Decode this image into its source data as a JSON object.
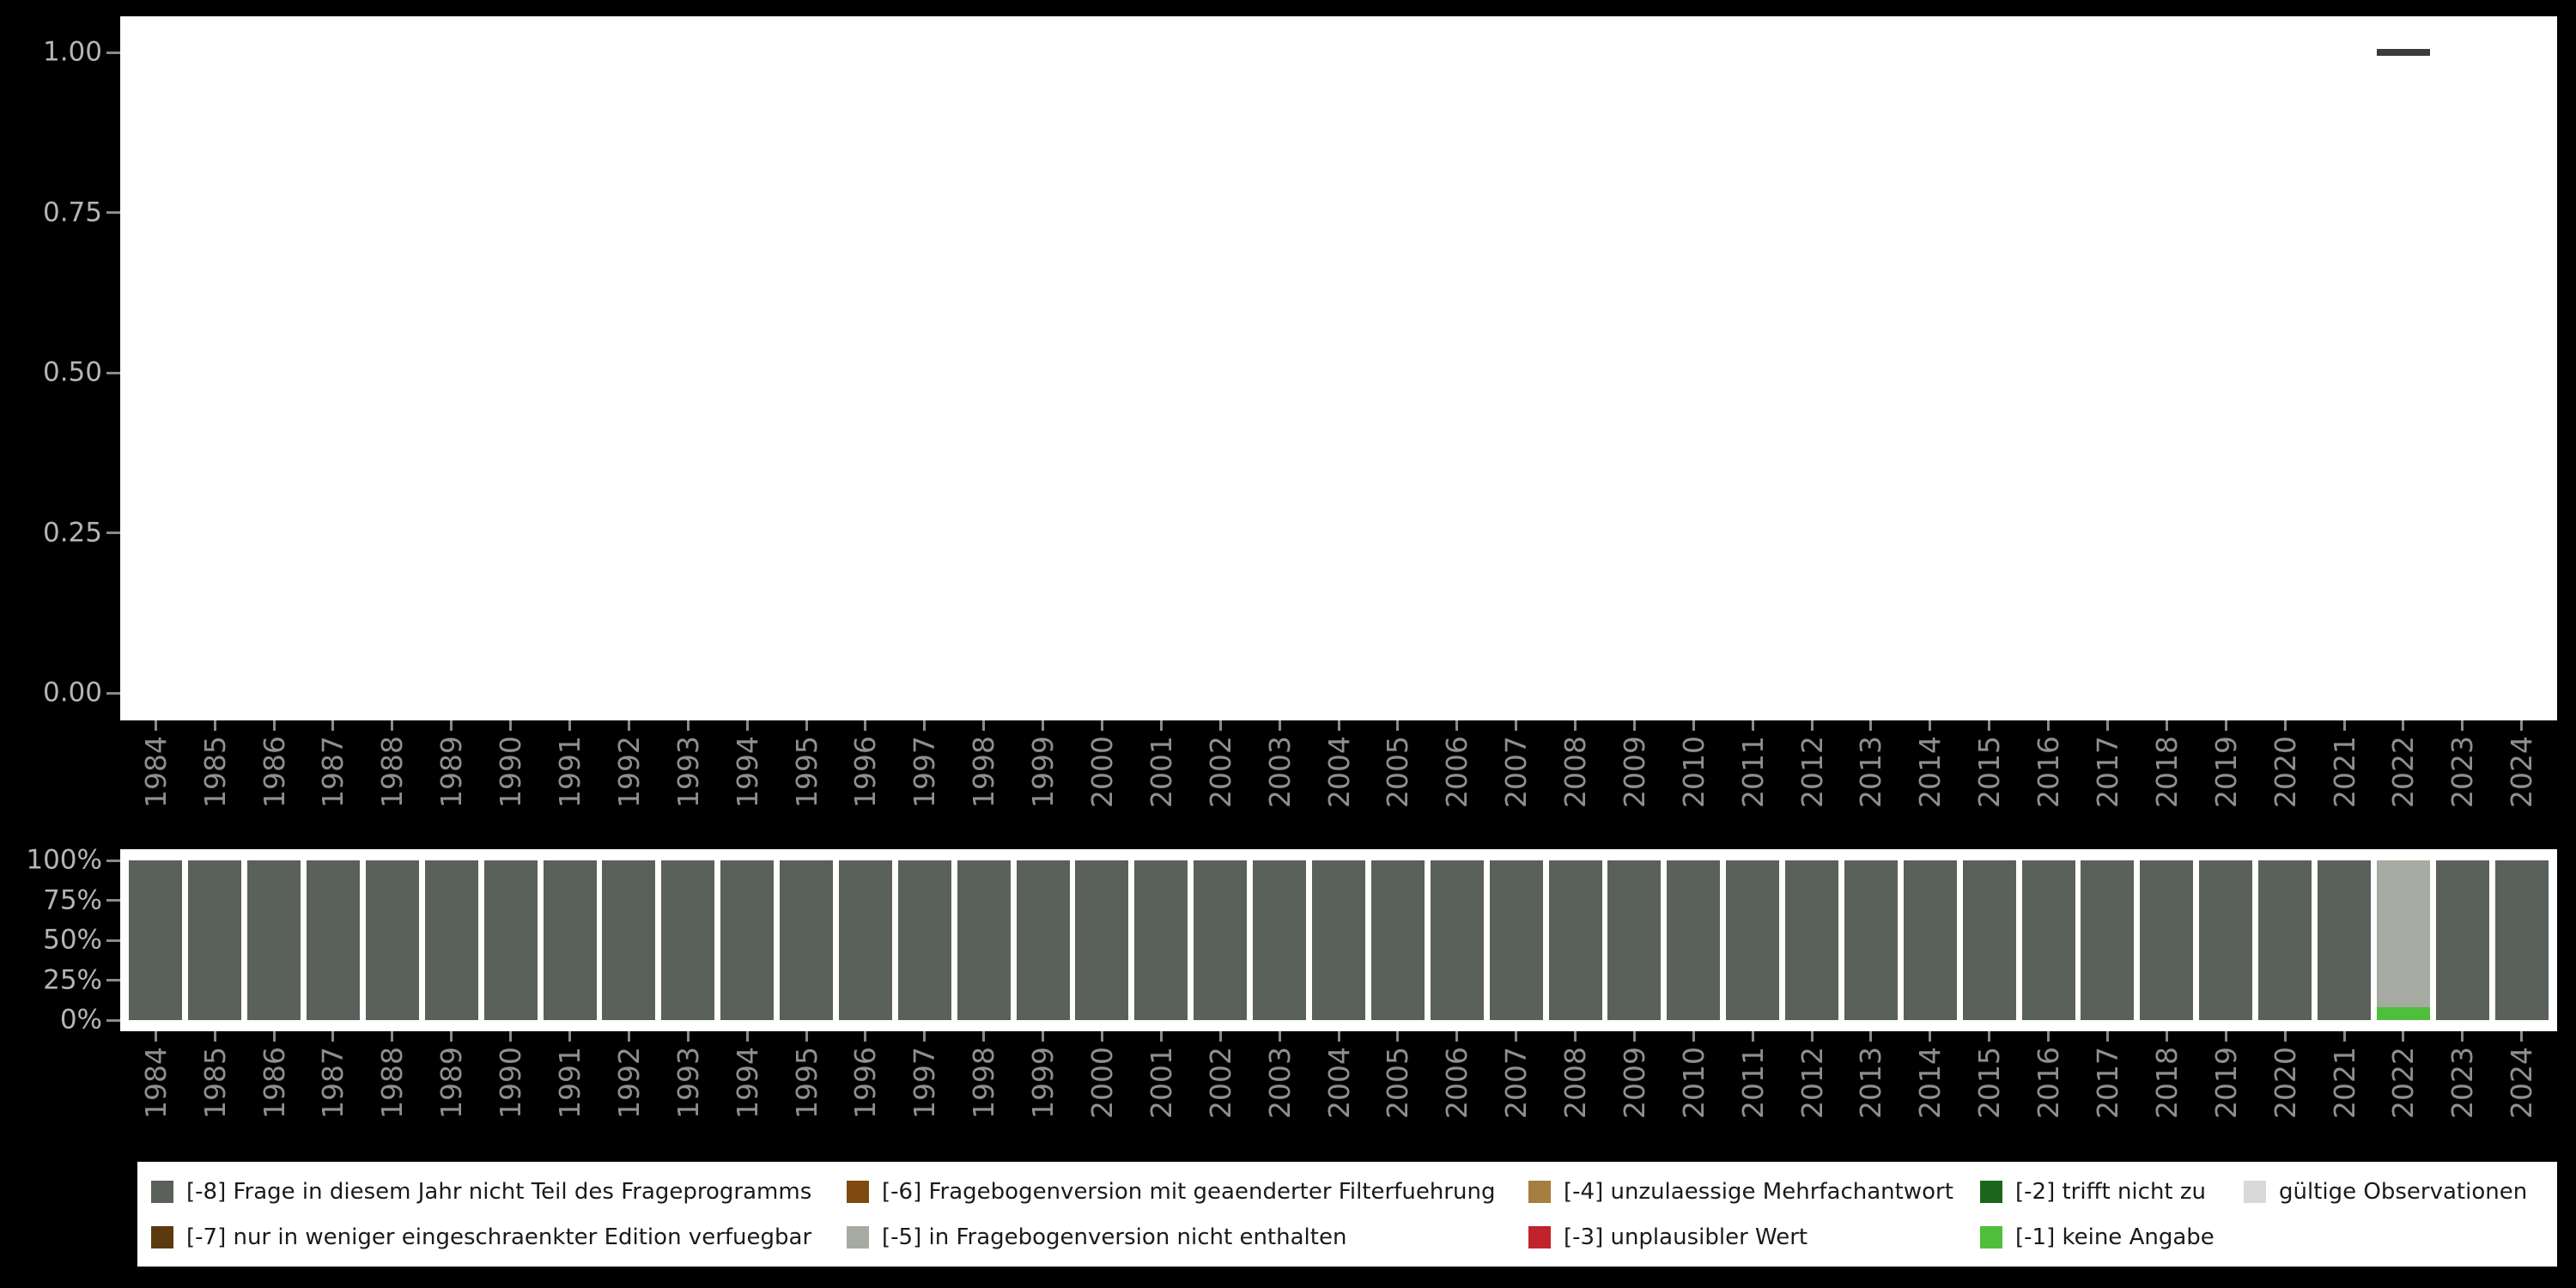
{
  "colors": {
    "page_background": "#000000",
    "panel_background": "#ffffff",
    "y_axis_text": "#b5b5b5",
    "x_axis_text": "#8f8f8f",
    "tick_mark": "#8a8a8a",
    "legend_text": "#1a1a1a"
  },
  "years": [
    "1984",
    "1985",
    "1986",
    "1987",
    "1988",
    "1989",
    "1990",
    "1991",
    "1992",
    "1993",
    "1994",
    "1995",
    "1996",
    "1997",
    "1998",
    "1999",
    "2000",
    "2001",
    "2002",
    "2003",
    "2004",
    "2005",
    "2006",
    "2007",
    "2008",
    "2009",
    "2010",
    "2011",
    "2012",
    "2013",
    "2014",
    "2015",
    "2016",
    "2017",
    "2018",
    "2019",
    "2020",
    "2021",
    "2022",
    "2023",
    "2024"
  ],
  "codes": {
    "-8": {
      "label": "[-8] Frage in diesem Jahr nicht Teil des Frageprogramms",
      "color": "#59615a"
    },
    "-7": {
      "label": "[-7] nur in weniger eingeschraenkter Edition verfuegbar",
      "color": "#5c3a0f"
    },
    "-6": {
      "label": "[-6] Fragebogenversion mit geaenderter Filterfuehrung",
      "color": "#7e4a10"
    },
    "-5": {
      "label": "[-5] in Fragebogenversion nicht enthalten",
      "color": "#a5aba0"
    },
    "-4": {
      "label": "[-4] unzulaessige Mehrfachantwort",
      "color": "#a57e40"
    },
    "-3": {
      "label": "[-3] unplausibler Wert",
      "color": "#c1232b"
    },
    "-2": {
      "label": "[-2] trifft nicht zu",
      "color": "#1c661c"
    },
    "-1": {
      "label": "[-1] keine Angabe",
      "color": "#4fbe3a"
    },
    "valid": {
      "label": "gültige Observationen",
      "color": "#d9d9d9"
    }
  },
  "legend": {
    "columns": [
      [
        "-8",
        "-7"
      ],
      [
        "-6",
        "-5"
      ],
      [
        "-4",
        "-3"
      ],
      [
        "-2",
        "-1"
      ],
      [
        "valid"
      ]
    ]
  },
  "chart_data": [
    {
      "type": "scatter",
      "panel": "top",
      "title": "",
      "xlabel": "",
      "ylabel": "",
      "ylim": [
        0,
        1
      ],
      "grid": false,
      "yticks": [
        {
          "label": "1.00",
          "value": 1.0
        },
        {
          "label": "0.75",
          "value": 0.75
        },
        {
          "label": "0.50",
          "value": 0.5
        },
        {
          "label": "0.25",
          "value": 0.25
        },
        {
          "label": "0.00",
          "value": 0.0
        }
      ],
      "x_categories": "years",
      "marker": "horizontal-dash",
      "marker_color": "#3b3b3b",
      "points": [
        {
          "x": "2022",
          "y": 1.0
        }
      ]
    },
    {
      "type": "bar",
      "panel": "bottom",
      "stacked": true,
      "stack_order": "bottom-to-top",
      "unit": "percent",
      "ylim": [
        0,
        100
      ],
      "grid": false,
      "yticks": [
        {
          "label": "100%",
          "value": 100
        },
        {
          "label": "75%",
          "value": 75
        },
        {
          "label": "50%",
          "value": 50
        },
        {
          "label": "25%",
          "value": 25
        },
        {
          "label": "0%",
          "value": 0
        }
      ],
      "x_categories": "years",
      "default_composition": [
        {
          "code": "-8",
          "pct": 100
        }
      ],
      "overrides": {
        "2022": [
          {
            "code": "-1",
            "pct": 8
          },
          {
            "code": "-5",
            "pct": 92
          }
        ]
      }
    }
  ]
}
